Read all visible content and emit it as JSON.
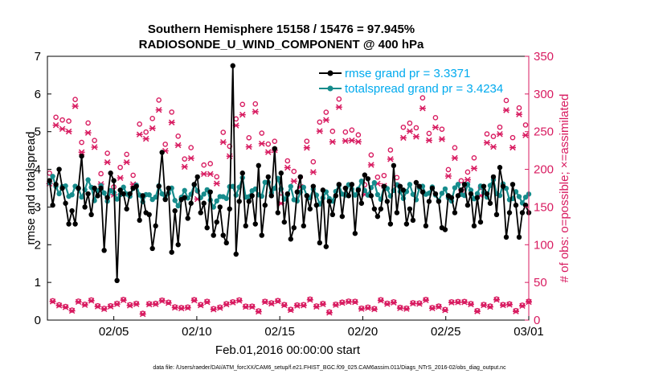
{
  "colors": {
    "rmse": "#000000",
    "spread": "#168c8c",
    "obs": "#d81b60",
    "legend_text": "#00aaee",
    "axis": "#000000"
  },
  "chart_data": {
    "type": "line",
    "title_line1": "Southern Hemisphere 15158 / 15476 = 97.945%",
    "title_line2": "RADIOSONDE_U_WIND_COMPONENT @ 400 hPa",
    "ylabel_left": "rmse and totalspread",
    "ylabel_right": "# of obs: o=possible; ×=assimilated",
    "xlabel": "Feb.01,2016 00:00:00 start",
    "footnote": "data file: /Users/raeder/DAI/ATM_forcXX/CAM6_setup/f.e21.FHIST_BGC.f09_025.CAM6assim.011/Diags_NTrS_2016-02/obs_diag_output.nc",
    "xlim": [
      0,
      29
    ],
    "ylim_left": [
      0,
      7
    ],
    "ylim_right": [
      0,
      350
    ],
    "yticks_left": [
      "0",
      "1",
      "2",
      "3",
      "4",
      "5",
      "6",
      "7"
    ],
    "yticks_right": [
      "0",
      "50",
      "100",
      "150",
      "200",
      "250",
      "300",
      "350"
    ],
    "xticks": [
      {
        "day": 4,
        "label": "02/05"
      },
      {
        "day": 9,
        "label": "02/10"
      },
      {
        "day": 14,
        "label": "02/15"
      },
      {
        "day": 19,
        "label": "02/20"
      },
      {
        "day": 24,
        "label": "02/25"
      },
      {
        "day": 29,
        "label": "03/01"
      }
    ],
    "legend": [
      {
        "name": "rmse",
        "label": "rmse grand pr = 3.3371"
      },
      {
        "name": "totalspread",
        "label": "totalspread grand pr = 3.4234"
      }
    ],
    "rmse": [
      3.7,
      3.05,
      3.6,
      4.0,
      3.5,
      3.1,
      2.55,
      2.9,
      2.55,
      3.5,
      4.35,
      3.0,
      3.35,
      2.8,
      3.5,
      3.3,
      3.5,
      1.85,
      3.25,
      3.9,
      3.7,
      1.05,
      3.45,
      3.35,
      2.95,
      3.35,
      3.5,
      3.55,
      2.65,
      3.3,
      2.85,
      2.8,
      1.9,
      2.5,
      3.55,
      4.45,
      3.2,
      3.5,
      1.8,
      2.9,
      2.0,
      3.2,
      3.25,
      2.7,
      3.1,
      3.6,
      3.8,
      2.85,
      3.1,
      2.45,
      3.4,
      2.25,
      2.6,
      3.0,
      2.25,
      2.05,
      2.95,
      6.75,
      1.75,
      3.15,
      3.9,
      2.5,
      3.15,
      3.3,
      2.55,
      4.1,
      2.25,
      3.05,
      3.8,
      3.3,
      4.55,
      2.85,
      3.9,
      2.6,
      3.35,
      2.15,
      2.45,
      3.4,
      3.8,
      2.5,
      3.3,
      2.95,
      3.55,
      3.05,
      2.05,
      3.45,
      1.95,
      3.15,
      2.8,
      3.3,
      3.6,
      2.75,
      3.5,
      3.3,
      3.6,
      2.3,
      3.45,
      3.1,
      3.85,
      3.75,
      3.3,
      2.95,
      2.75,
      2.95,
      3.55,
      3.15,
      2.55,
      4.1,
      2.85,
      3.55,
      3.45,
      2.55,
      2.95,
      2.65,
      3.65,
      3.55,
      3.4,
      2.5,
      3.15,
      3.5,
      3.35,
      3.15,
      2.45,
      2.4,
      3.3,
      3.25,
      2.85,
      3.3,
      3.45,
      3.6,
      3.05,
      3.35,
      2.5,
      3.25,
      2.6,
      3.55,
      3.35,
      3.1,
      3.8,
      2.8,
      4.05,
      3.55,
      2.2,
      2.85,
      3.6,
      3.05,
      2.2,
      2.85,
      3.05,
      2.85
    ]
  }
}
